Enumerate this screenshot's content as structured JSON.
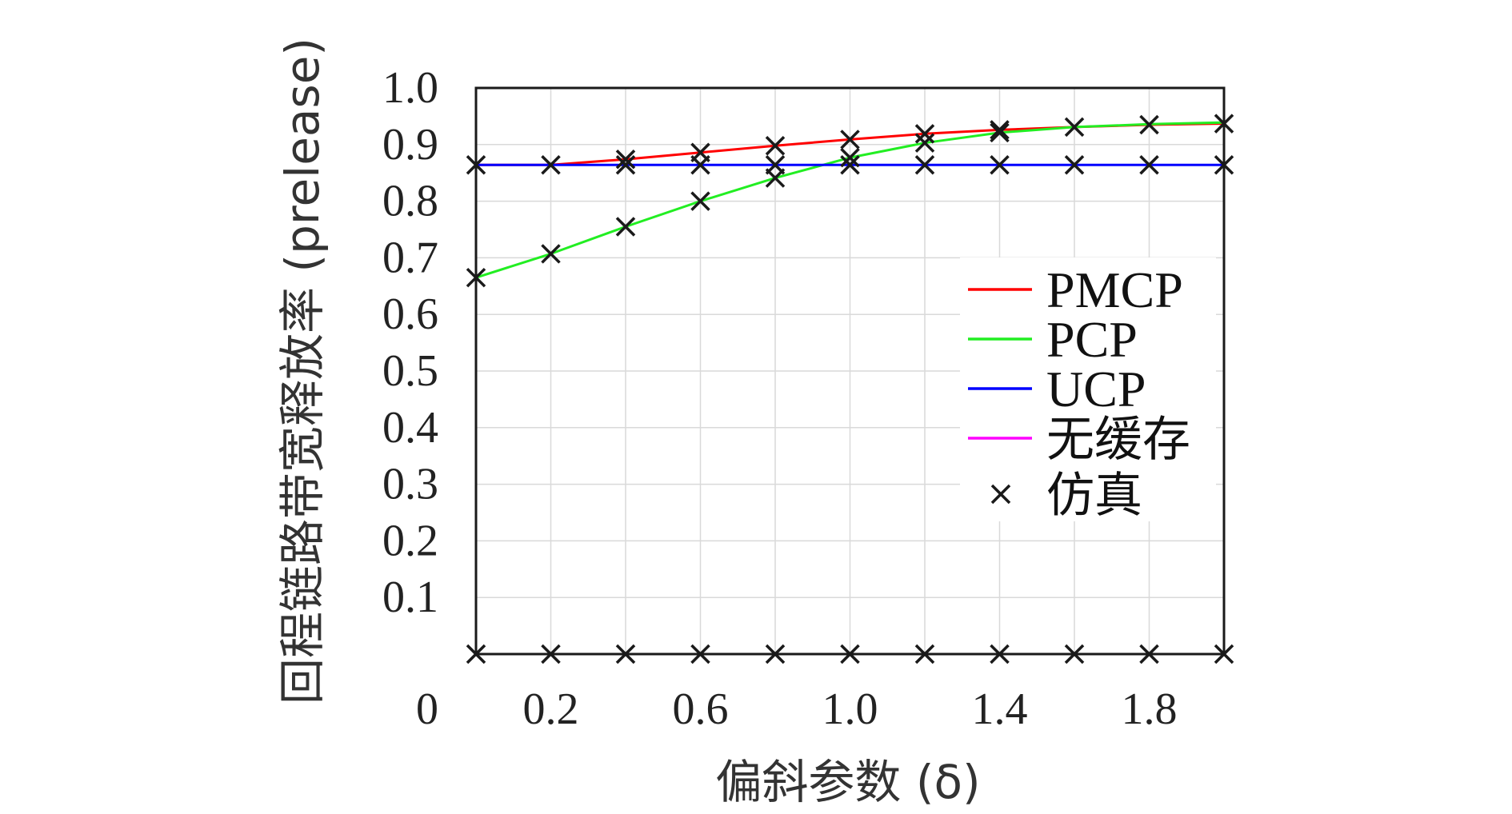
{
  "chart_data": {
    "type": "line",
    "title": "",
    "xlabel": "偏斜参数 (δ)",
    "ylabel": "回程链路带宽释放率 (prelease)",
    "xlim": [
      0,
      2.0
    ],
    "ylim": [
      0,
      1.0
    ],
    "grid": true,
    "legend_position": "right",
    "x_tick_labels": [
      {
        "value": 0.2,
        "label": "0.2"
      },
      {
        "value": 0.6,
        "label": "0.6"
      },
      {
        "value": 1.0,
        "label": "1.0"
      },
      {
        "value": 1.4,
        "label": "1.4"
      },
      {
        "value": 1.8,
        "label": "1.8"
      }
    ],
    "x_grid_values": [
      0.2,
      0.4,
      0.6,
      0.8,
      1.0,
      1.2,
      1.4,
      1.6,
      1.8,
      2.0
    ],
    "y_tick_labels": [
      {
        "value": 0.0,
        "label": "0"
      },
      {
        "value": 0.1,
        "label": "0.1"
      },
      {
        "value": 0.2,
        "label": "0.2"
      },
      {
        "value": 0.3,
        "label": "0.3"
      },
      {
        "value": 0.4,
        "label": "0.4"
      },
      {
        "value": 0.5,
        "label": "0.5"
      },
      {
        "value": 0.6,
        "label": "0.6"
      },
      {
        "value": 0.7,
        "label": "0.7"
      },
      {
        "value": 0.8,
        "label": "0.8"
      },
      {
        "value": 0.9,
        "label": "0.9"
      },
      {
        "value": 1.0,
        "label": "1.0"
      }
    ],
    "x": [
      0,
      0.2,
      0.4,
      0.6,
      0.8,
      1.0,
      1.2,
      1.4,
      1.6,
      1.8,
      2.0
    ],
    "series": [
      {
        "name": "PMCP",
        "color": "#ff0000",
        "values": [
          0.864,
          0.864,
          0.874,
          0.886,
          0.898,
          0.909,
          0.919,
          0.926,
          0.931,
          0.935,
          0.937
        ]
      },
      {
        "name": "PCP",
        "color": "#22ee22",
        "values": [
          0.665,
          0.707,
          0.755,
          0.8,
          0.841,
          0.877,
          0.903,
          0.921,
          0.931,
          0.936,
          0.939
        ]
      },
      {
        "name": "UCP",
        "color": "#0000ff",
        "values": [
          0.864,
          0.864,
          0.864,
          0.864,
          0.864,
          0.864,
          0.864,
          0.864,
          0.864,
          0.864,
          0.864
        ]
      },
      {
        "name": "无缓存",
        "color": "#ff00ff",
        "values": [
          0,
          0,
          0,
          0,
          0,
          0,
          0,
          0,
          0,
          0,
          0
        ]
      }
    ],
    "simulation": {
      "name": "仿真",
      "color": "#1a1a1a",
      "points": [
        [
          0,
          0.864
        ],
        [
          0.2,
          0.864
        ],
        [
          0.4,
          0.874
        ],
        [
          0.6,
          0.886
        ],
        [
          0.8,
          0.898
        ],
        [
          1.0,
          0.909
        ],
        [
          1.2,
          0.919
        ],
        [
          1.4,
          0.926
        ],
        [
          1.6,
          0.931
        ],
        [
          1.8,
          0.935
        ],
        [
          2.0,
          0.937
        ],
        [
          0,
          0.665
        ],
        [
          0.2,
          0.707
        ],
        [
          0.4,
          0.755
        ],
        [
          0.6,
          0.8
        ],
        [
          0.8,
          0.841
        ],
        [
          1.0,
          0.877
        ],
        [
          1.2,
          0.903
        ],
        [
          1.4,
          0.921
        ],
        [
          0.4,
          0.864
        ],
        [
          0.6,
          0.864
        ],
        [
          0.8,
          0.864
        ],
        [
          1.0,
          0.864
        ],
        [
          1.2,
          0.864
        ],
        [
          1.4,
          0.864
        ],
        [
          1.6,
          0.864
        ],
        [
          1.8,
          0.864
        ],
        [
          2.0,
          0.864
        ],
        [
          0,
          0
        ],
        [
          0.2,
          0
        ],
        [
          0.4,
          0
        ],
        [
          0.6,
          0
        ],
        [
          0.8,
          0
        ],
        [
          1.0,
          0
        ],
        [
          1.2,
          0
        ],
        [
          1.4,
          0
        ],
        [
          1.6,
          0
        ],
        [
          1.8,
          0
        ],
        [
          2.0,
          0
        ]
      ]
    }
  }
}
